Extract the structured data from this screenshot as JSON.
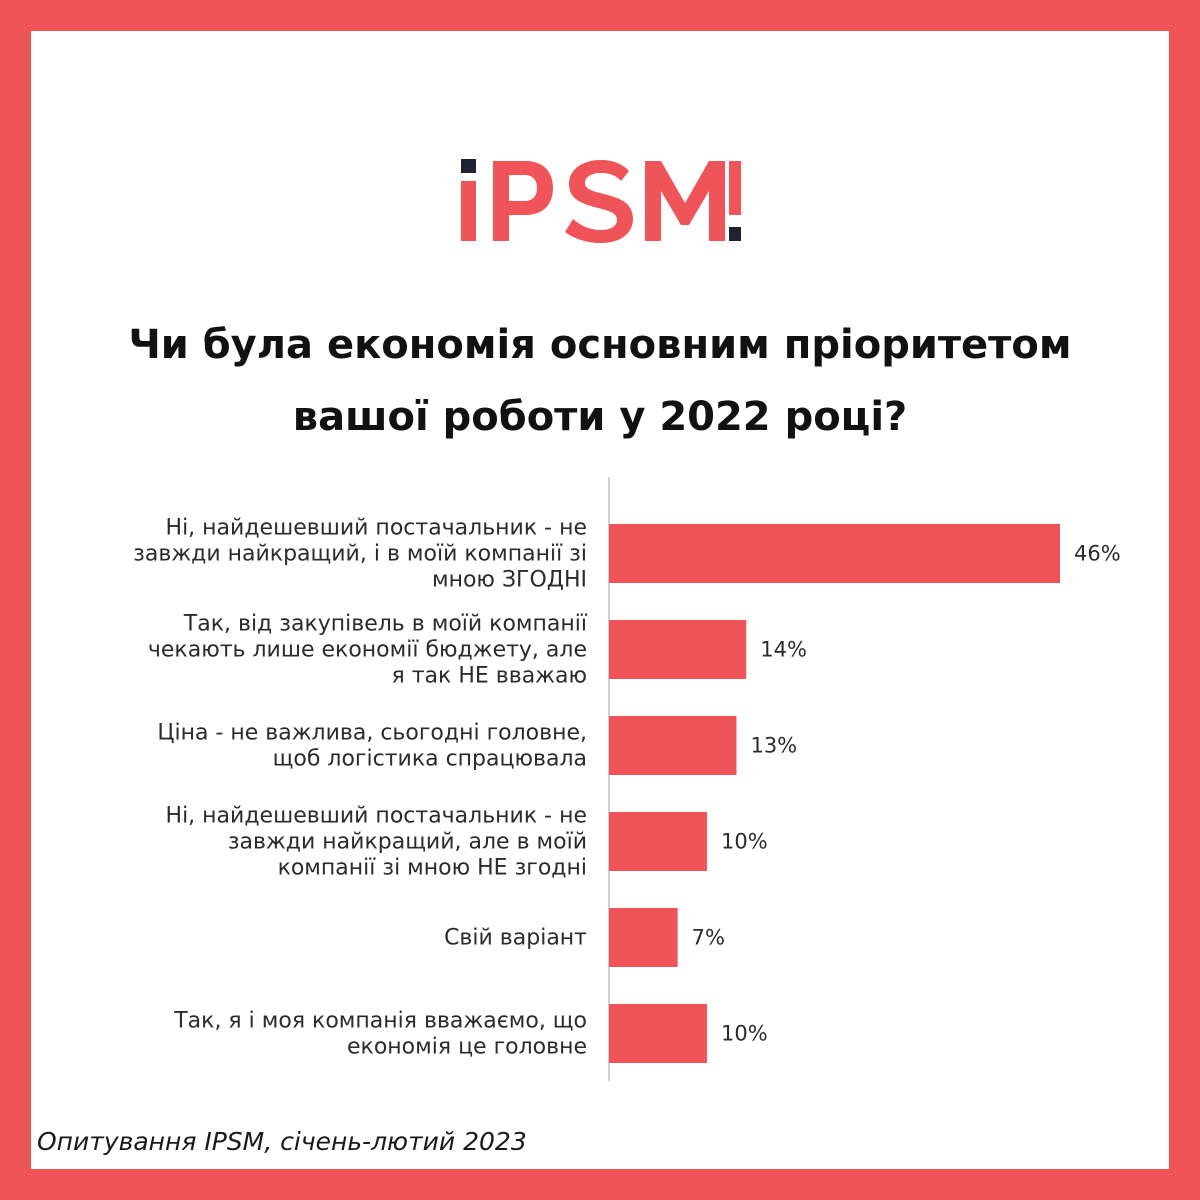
{
  "brand": {
    "logo_text": "iPSM",
    "accent_color": "#ef5459",
    "dark_color": "#1f2233"
  },
  "title": "Чи була економія основним пріоритетом вашої роботи у 2022 році?",
  "source": "Опитування IPSM, січень-лютий 2023",
  "chart_data": {
    "type": "bar",
    "orientation": "horizontal",
    "title": "Чи була економія основним пріоритетом вашої роботи у 2022 році?",
    "xlabel": "",
    "ylabel": "",
    "xlim": [
      0,
      46
    ],
    "grid": false,
    "bar_color": "#ef5459",
    "categories": [
      [
        "Ні, найдешевший постачальник - не",
        "завжди найкращий, і в моїй компанії зі",
        "мною ЗГОДНІ"
      ],
      [
        "Так, від закупівель в моїй компанії",
        "чекають лише економії бюджету, але",
        "я так НЕ вважаю"
      ],
      [
        "Ціна - не важлива, сьогодні головне,",
        "щоб логістика спрацювала"
      ],
      [
        "Ні, найдешевший постачальник - не",
        "завжди найкращий, але в моїй",
        "компанії зі мною НЕ згодні"
      ],
      [
        "Свій варіант"
      ],
      [
        "Так, я і моя компанія вважаємо, що",
        "економія це головне"
      ]
    ],
    "values": [
      46,
      14,
      13,
      10,
      7,
      10
    ],
    "value_labels": [
      "46%",
      "14%",
      "13%",
      "10%",
      "7%",
      "10%"
    ]
  }
}
